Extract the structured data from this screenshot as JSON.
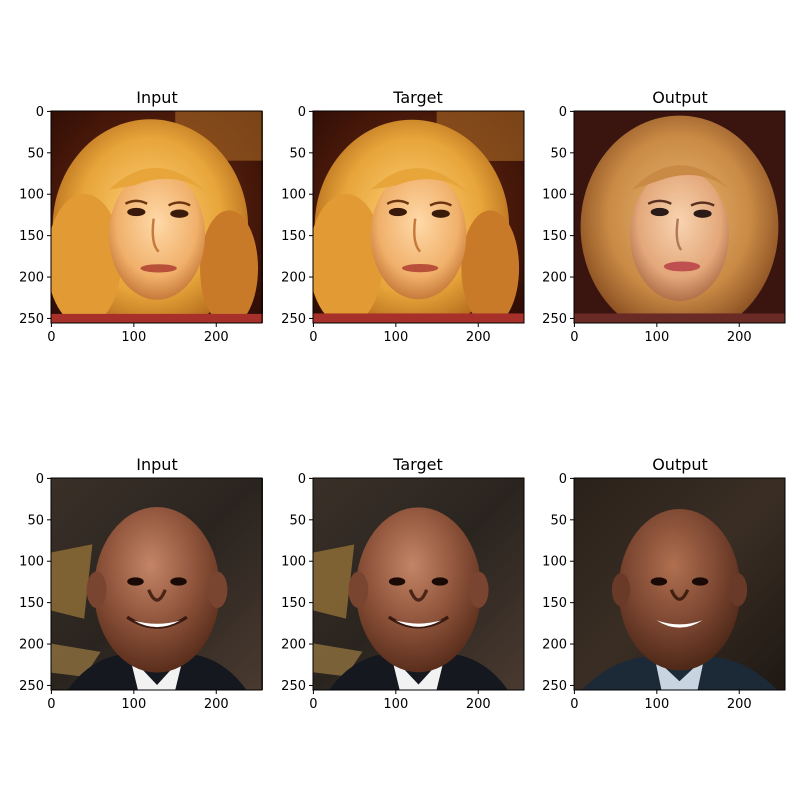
{
  "figure": {
    "rows": [
      {
        "panels": [
          {
            "title": "Input",
            "content": "woman-face-input"
          },
          {
            "title": "Target",
            "content": "woman-face-target"
          },
          {
            "title": "Output",
            "content": "woman-face-output"
          }
        ]
      },
      {
        "panels": [
          {
            "title": "Input",
            "content": "man-face-input"
          },
          {
            "title": "Target",
            "content": "man-face-target"
          },
          {
            "title": "Output",
            "content": "man-face-output"
          }
        ]
      }
    ],
    "axes": {
      "x_ticks": [
        "0",
        "100",
        "200"
      ],
      "y_ticks": [
        "0",
        "50",
        "100",
        "150",
        "200",
        "250"
      ],
      "x_tick_values": [
        0,
        100,
        200
      ],
      "y_tick_values": [
        0,
        50,
        100,
        150,
        200,
        250
      ],
      "range": [
        0,
        256
      ]
    }
  }
}
